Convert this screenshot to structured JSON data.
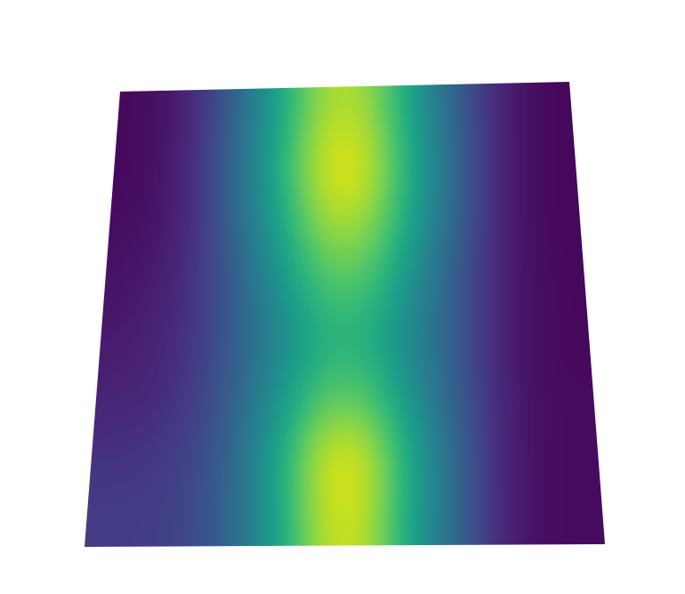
{
  "chart_data": {
    "type": "heatmap",
    "color": "viridis",
    "tick_labels": false,
    "clim": [
      0,
      1
    ],
    "cells": [
      [
        0.02,
        0.03,
        0.1,
        0.32,
        0.58,
        0.88,
        0.88,
        0.58,
        0.32,
        0.1,
        0.02,
        0.02
      ],
      [
        0.02,
        0.03,
        0.12,
        0.35,
        0.62,
        0.97,
        0.97,
        0.62,
        0.35,
        0.1,
        0.02,
        0.02
      ],
      [
        0.03,
        0.04,
        0.12,
        0.33,
        0.58,
        0.86,
        0.86,
        0.58,
        0.33,
        0.1,
        0.02,
        0.02
      ],
      [
        0.05,
        0.07,
        0.14,
        0.3,
        0.5,
        0.72,
        0.72,
        0.5,
        0.3,
        0.1,
        0.03,
        0.02
      ],
      [
        0.07,
        0.09,
        0.15,
        0.3,
        0.46,
        0.62,
        0.62,
        0.46,
        0.3,
        0.1,
        0.03,
        0.02
      ],
      [
        0.1,
        0.11,
        0.17,
        0.32,
        0.52,
        0.76,
        0.76,
        0.52,
        0.32,
        0.11,
        0.03,
        0.03
      ],
      [
        0.15,
        0.16,
        0.2,
        0.35,
        0.6,
        0.96,
        0.96,
        0.6,
        0.35,
        0.12,
        0.03,
        0.03
      ],
      [
        0.18,
        0.18,
        0.21,
        0.35,
        0.58,
        0.92,
        0.92,
        0.58,
        0.35,
        0.12,
        0.03,
        0.03
      ]
    ]
  }
}
